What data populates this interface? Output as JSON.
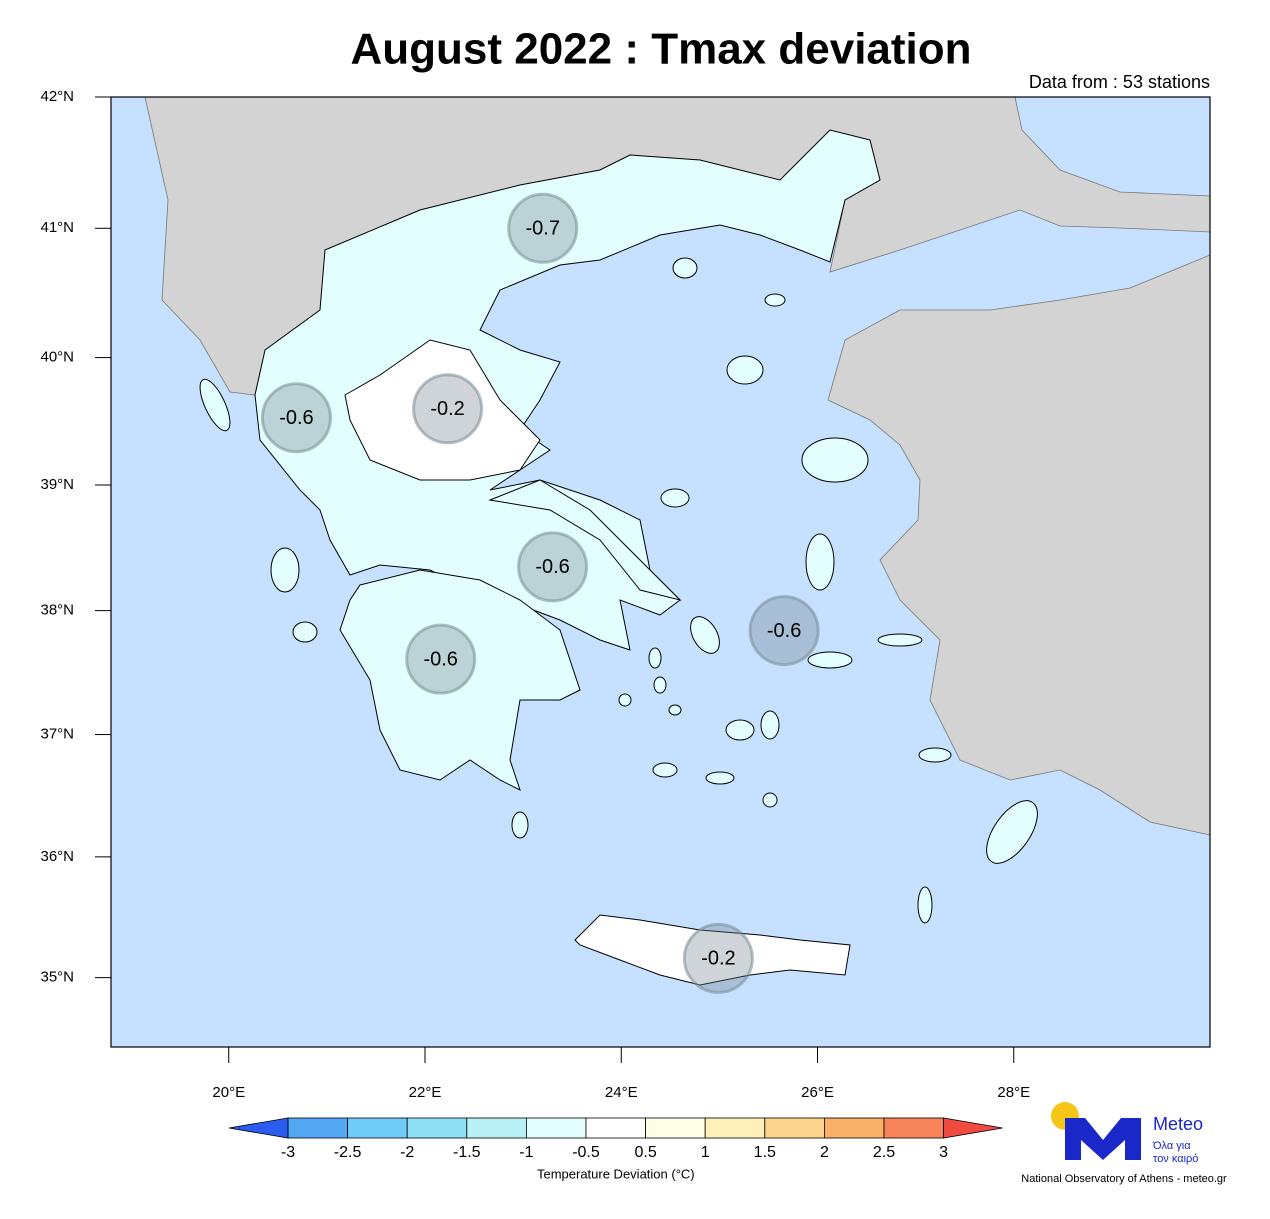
{
  "chart_data": {
    "type": "map",
    "title": "August 2022 : Tmax deviation",
    "subtitle": "Data from : 53 stations",
    "xlim": [
      18.8,
      30.0
    ],
    "ylim": [
      34.42,
      42.0
    ],
    "xticks": [
      {
        "value": 20,
        "label": "20°E"
      },
      {
        "value": 22,
        "label": "22°E"
      },
      {
        "value": 24,
        "label": "24°E"
      },
      {
        "value": 26,
        "label": "26°E"
      },
      {
        "value": 28,
        "label": "28°E"
      }
    ],
    "yticks": [
      {
        "value": 42,
        "label": "42°N"
      },
      {
        "value": 41,
        "label": "41°N"
      },
      {
        "value": 40,
        "label": "40°N"
      },
      {
        "value": 39,
        "label": "39°N"
      },
      {
        "value": 38,
        "label": "38°N"
      },
      {
        "value": 37,
        "label": "37°N"
      },
      {
        "value": 36,
        "label": "36°N"
      },
      {
        "value": 35,
        "label": "35°N"
      }
    ],
    "stations": [
      {
        "lon": 23.2,
        "lat": 41.0,
        "value": -0.7
      },
      {
        "lon": 20.69,
        "lat": 39.53,
        "value": -0.6
      },
      {
        "lon": 22.23,
        "lat": 39.6,
        "value": -0.2
      },
      {
        "lon": 23.3,
        "lat": 38.35,
        "value": -0.6
      },
      {
        "lon": 25.66,
        "lat": 37.84,
        "value": -0.6
      },
      {
        "lon": 22.16,
        "lat": 37.61,
        "value": -0.6
      },
      {
        "lon": 24.99,
        "lat": 35.16,
        "value": -0.2
      }
    ],
    "colorbar": {
      "label": "Temperature Deviation (°C)",
      "levels": [
        -3,
        -2.5,
        -2,
        -1.5,
        -1,
        -0.5,
        0.5,
        1,
        1.5,
        2,
        2.5,
        3
      ],
      "colors": [
        "#2a5cf0",
        "#52a8f5",
        "#6fcbf7",
        "#8fe0f7",
        "#b8f0f5",
        "#e3fefe",
        "#ffffff",
        "#fffde6",
        "#fef0b8",
        "#fdd58f",
        "#fbb06a",
        "#f7845a",
        "#ef4b40"
      ]
    }
  },
  "logo": {
    "name": "Meteo",
    "tagline": [
      "Όλα για",
      "τον καιρό"
    ],
    "credit": "National Observatory of Athens - meteo.gr"
  }
}
